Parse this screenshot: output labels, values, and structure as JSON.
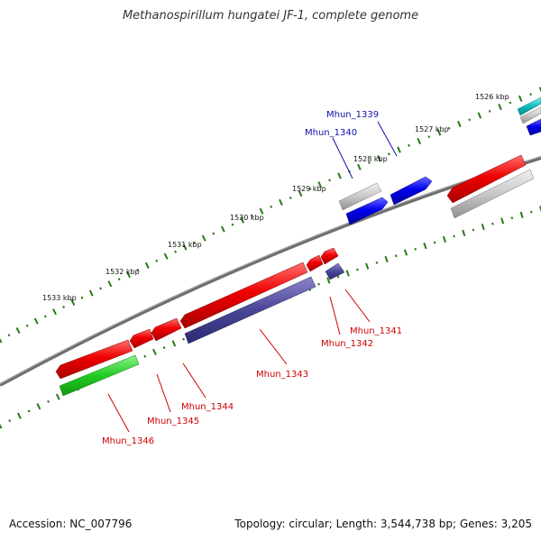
{
  "title": "Methanospirillum hungatei JF-1, complete genome",
  "footer": {
    "accession": "Accession: NC_007796",
    "summary": "Topology: circular; Length: 3,544,738 bp; Genes: 3,205"
  },
  "colors": {
    "backbone": "#777777",
    "tick": "#2a7a1a",
    "label_forward": "#1010aa",
    "label_reverse": "#cc0000"
  },
  "ruler_labels": [
    "1526 kbp",
    "1527 kbp",
    "1528 kbp",
    "1529 kbp",
    "1530 kbp",
    "1531 kbp",
    "1532 kbp",
    "1533 kbp"
  ],
  "gene_labels": [
    {
      "name": "Mhun_1339",
      "strand": "forward"
    },
    {
      "name": "Mhun_1340",
      "strand": "forward"
    },
    {
      "name": "Mhun_1341",
      "strand": "reverse"
    },
    {
      "name": "Mhun_1342",
      "strand": "reverse"
    },
    {
      "name": "Mhun_1343",
      "strand": "reverse"
    },
    {
      "name": "Mhun_1344",
      "strand": "reverse"
    },
    {
      "name": "Mhun_1345",
      "strand": "reverse"
    },
    {
      "name": "Mhun_1346",
      "strand": "reverse"
    }
  ]
}
